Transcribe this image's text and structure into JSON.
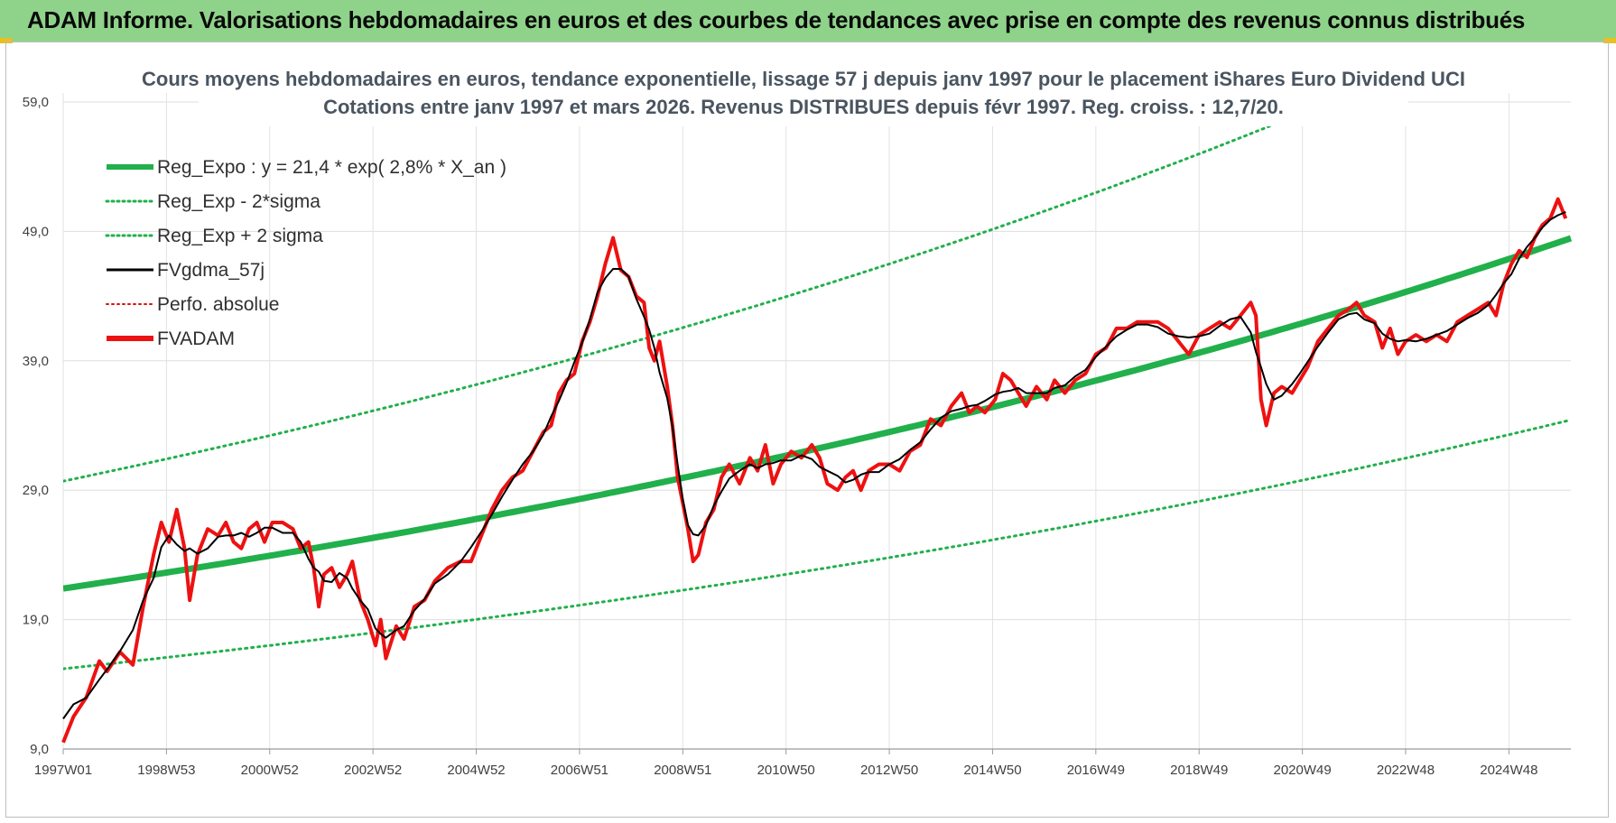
{
  "header": {
    "title": "ADAM Informe. Valorisations hebdomadaires en euros et des courbes de tendances avec prise en compte des revenus connus distribués"
  },
  "chart_data": {
    "type": "line",
    "title": "Cours moyens hebdomadaires en euros, tendance exponentielle, lissage 57 j depuis janv 1997 pour le placement iShares Euro Dividend UCI",
    "subtitle": "Cotations entre janv 1997 et mars 2026. Revenus DISTRIBUES depuis févr 1997. Reg. croiss. : 12,7/20.",
    "xlabel": "",
    "ylabel": "",
    "ylim": [
      9,
      59
    ],
    "xlim": [
      1997.0,
      2026.2
    ],
    "y_ticks": [
      "9,0",
      "19,0",
      "29,0",
      "39,0",
      "49,0",
      "59,0"
    ],
    "x_ticks": [
      {
        "year": 1997.0,
        "label": "1997W01"
      },
      {
        "year": 1999.0,
        "label": "1998W53"
      },
      {
        "year": 2001.0,
        "label": "2000W52"
      },
      {
        "year": 2003.0,
        "label": "2002W52"
      },
      {
        "year": 2005.0,
        "label": "2004W52"
      },
      {
        "year": 2007.0,
        "label": "2006W51"
      },
      {
        "year": 2009.0,
        "label": "2008W51"
      },
      {
        "year": 2011.0,
        "label": "2010W50"
      },
      {
        "year": 2013.0,
        "label": "2012W50"
      },
      {
        "year": 2015.0,
        "label": "2014W50"
      },
      {
        "year": 2017.0,
        "label": "2016W49"
      },
      {
        "year": 2019.0,
        "label": "2018W49"
      },
      {
        "year": 2021.0,
        "label": "2020W49"
      },
      {
        "year": 2023.0,
        "label": "2022W48"
      },
      {
        "year": 2025.0,
        "label": "2024W48"
      }
    ],
    "series": [
      {
        "name": "Reg_Expo : y = 21,4 * exp( 2,8% *  X_an )",
        "kind": "regression",
        "a": 21.4,
        "r": 0.028,
        "color": "#21b04b",
        "style": "solid-thick"
      },
      {
        "name": "Reg_Exp - 2*sigma",
        "kind": "regression",
        "a": 15.2,
        "r": 0.028,
        "color": "#21b04b",
        "style": "dotted"
      },
      {
        "name": "Reg_Exp + 2 sigma",
        "kind": "regression",
        "a": 29.7,
        "r": 0.028,
        "color": "#21b04b",
        "style": "dotted"
      },
      {
        "name": "FVgdma_57j",
        "kind": "smoothed",
        "color": "#000000",
        "style": "solid"
      },
      {
        "name": "Perfo. absolue",
        "kind": "hidden",
        "color": "#d11",
        "style": "dotted"
      },
      {
        "name": "FVADAM",
        "kind": "price",
        "color": "#ee1111",
        "style": "solid-thick",
        "points": [
          [
            1997.0,
            9.5
          ],
          [
            1997.2,
            11.5
          ],
          [
            1997.45,
            13.0
          ],
          [
            1997.7,
            15.8
          ],
          [
            1997.85,
            15.0
          ],
          [
            1998.1,
            16.5
          ],
          [
            1998.35,
            15.5
          ],
          [
            1998.55,
            20.0
          ],
          [
            1998.75,
            24.0
          ],
          [
            1998.9,
            26.5
          ],
          [
            1999.05,
            25.0
          ],
          [
            1999.2,
            27.5
          ],
          [
            1999.35,
            24.5
          ],
          [
            1999.45,
            20.5
          ],
          [
            1999.6,
            24.0
          ],
          [
            1999.8,
            26.0
          ],
          [
            2000.0,
            25.5
          ],
          [
            2000.15,
            26.5
          ],
          [
            2000.3,
            25.0
          ],
          [
            2000.45,
            24.5
          ],
          [
            2000.6,
            26.0
          ],
          [
            2000.75,
            26.5
          ],
          [
            2000.9,
            25.0
          ],
          [
            2001.05,
            26.5
          ],
          [
            2001.25,
            26.5
          ],
          [
            2001.45,
            26.0
          ],
          [
            2001.6,
            24.5
          ],
          [
            2001.75,
            25.0
          ],
          [
            2001.85,
            23.0
          ],
          [
            2001.95,
            20.0
          ],
          [
            2002.05,
            22.5
          ],
          [
            2002.2,
            23.0
          ],
          [
            2002.35,
            21.5
          ],
          [
            2002.5,
            22.5
          ],
          [
            2002.6,
            23.5
          ],
          [
            2002.75,
            20.5
          ],
          [
            2002.9,
            19.0
          ],
          [
            2003.05,
            17.0
          ],
          [
            2003.15,
            19.0
          ],
          [
            2003.25,
            16.0
          ],
          [
            2003.45,
            18.5
          ],
          [
            2003.6,
            17.5
          ],
          [
            2003.8,
            20.0
          ],
          [
            2004.0,
            20.5
          ],
          [
            2004.2,
            22.0
          ],
          [
            2004.45,
            23.0
          ],
          [
            2004.7,
            23.5
          ],
          [
            2004.9,
            23.5
          ],
          [
            2005.1,
            25.5
          ],
          [
            2005.3,
            27.5
          ],
          [
            2005.5,
            29.0
          ],
          [
            2005.7,
            30.0
          ],
          [
            2005.9,
            30.5
          ],
          [
            2006.1,
            32.0
          ],
          [
            2006.3,
            33.5
          ],
          [
            2006.45,
            34.0
          ],
          [
            2006.6,
            36.5
          ],
          [
            2006.75,
            37.5
          ],
          [
            2006.9,
            38.0
          ],
          [
            2007.05,
            40.5
          ],
          [
            2007.2,
            42.0
          ],
          [
            2007.35,
            44.0
          ],
          [
            2007.5,
            46.5
          ],
          [
            2007.65,
            48.5
          ],
          [
            2007.8,
            46.0
          ],
          [
            2007.95,
            45.5
          ],
          [
            2008.1,
            44.0
          ],
          [
            2008.25,
            43.5
          ],
          [
            2008.35,
            40.0
          ],
          [
            2008.45,
            39.0
          ],
          [
            2008.55,
            40.5
          ],
          [
            2008.7,
            37.0
          ],
          [
            2008.8,
            34.0
          ],
          [
            2008.9,
            30.0
          ],
          [
            2009.0,
            28.0
          ],
          [
            2009.1,
            26.0
          ],
          [
            2009.2,
            23.5
          ],
          [
            2009.3,
            24.0
          ],
          [
            2009.45,
            26.5
          ],
          [
            2009.6,
            27.5
          ],
          [
            2009.75,
            30.0
          ],
          [
            2009.9,
            31.0
          ],
          [
            2010.1,
            29.5
          ],
          [
            2010.3,
            31.5
          ],
          [
            2010.45,
            30.5
          ],
          [
            2010.6,
            32.5
          ],
          [
            2010.75,
            29.5
          ],
          [
            2010.9,
            31.0
          ],
          [
            2011.1,
            32.0
          ],
          [
            2011.3,
            31.5
          ],
          [
            2011.5,
            32.5
          ],
          [
            2011.65,
            31.5
          ],
          [
            2011.8,
            29.5
          ],
          [
            2012.0,
            29.0
          ],
          [
            2012.15,
            30.0
          ],
          [
            2012.3,
            30.5
          ],
          [
            2012.45,
            29.0
          ],
          [
            2012.6,
            30.5
          ],
          [
            2012.8,
            31.0
          ],
          [
            2013.0,
            31.0
          ],
          [
            2013.2,
            30.5
          ],
          [
            2013.4,
            32.0
          ],
          [
            2013.6,
            32.5
          ],
          [
            2013.8,
            34.5
          ],
          [
            2014.0,
            34.0
          ],
          [
            2014.2,
            35.5
          ],
          [
            2014.4,
            36.5
          ],
          [
            2014.55,
            35.0
          ],
          [
            2014.7,
            35.5
          ],
          [
            2014.85,
            35.0
          ],
          [
            2015.05,
            36.0
          ],
          [
            2015.2,
            38.0
          ],
          [
            2015.35,
            37.5
          ],
          [
            2015.5,
            36.5
          ],
          [
            2015.65,
            35.5
          ],
          [
            2015.85,
            37.0
          ],
          [
            2016.05,
            36.0
          ],
          [
            2016.2,
            37.5
          ],
          [
            2016.4,
            36.5
          ],
          [
            2016.6,
            37.5
          ],
          [
            2016.8,
            38.0
          ],
          [
            2017.0,
            39.5
          ],
          [
            2017.2,
            40.0
          ],
          [
            2017.4,
            41.5
          ],
          [
            2017.6,
            41.5
          ],
          [
            2017.8,
            42.0
          ],
          [
            2018.0,
            42.0
          ],
          [
            2018.2,
            42.0
          ],
          [
            2018.4,
            41.5
          ],
          [
            2018.6,
            40.5
          ],
          [
            2018.8,
            39.5
          ],
          [
            2019.0,
            41.0
          ],
          [
            2019.2,
            41.5
          ],
          [
            2019.4,
            42.0
          ],
          [
            2019.6,
            41.5
          ],
          [
            2019.8,
            42.5
          ],
          [
            2020.0,
            43.5
          ],
          [
            2020.1,
            42.5
          ],
          [
            2020.2,
            36.0
          ],
          [
            2020.3,
            34.0
          ],
          [
            2020.45,
            36.5
          ],
          [
            2020.6,
            37.0
          ],
          [
            2020.8,
            36.5
          ],
          [
            2020.95,
            37.5
          ],
          [
            2021.1,
            38.5
          ],
          [
            2021.3,
            40.5
          ],
          [
            2021.5,
            41.5
          ],
          [
            2021.7,
            42.5
          ],
          [
            2021.9,
            43.0
          ],
          [
            2022.05,
            43.5
          ],
          [
            2022.2,
            42.5
          ],
          [
            2022.4,
            42.0
          ],
          [
            2022.55,
            40.0
          ],
          [
            2022.7,
            41.5
          ],
          [
            2022.85,
            39.5
          ],
          [
            2023.0,
            40.5
          ],
          [
            2023.2,
            41.0
          ],
          [
            2023.4,
            40.5
          ],
          [
            2023.6,
            41.0
          ],
          [
            2023.8,
            40.5
          ],
          [
            2024.0,
            42.0
          ],
          [
            2024.2,
            42.5
          ],
          [
            2024.4,
            43.0
          ],
          [
            2024.6,
            43.5
          ],
          [
            2024.75,
            42.5
          ],
          [
            2024.9,
            45.0
          ],
          [
            2025.05,
            46.5
          ],
          [
            2025.2,
            47.5
          ],
          [
            2025.35,
            47.0
          ],
          [
            2025.5,
            48.5
          ],
          [
            2025.65,
            49.5
          ],
          [
            2025.8,
            50.0
          ],
          [
            2025.95,
            51.5
          ],
          [
            2026.1,
            50.0
          ]
        ]
      }
    ]
  }
}
